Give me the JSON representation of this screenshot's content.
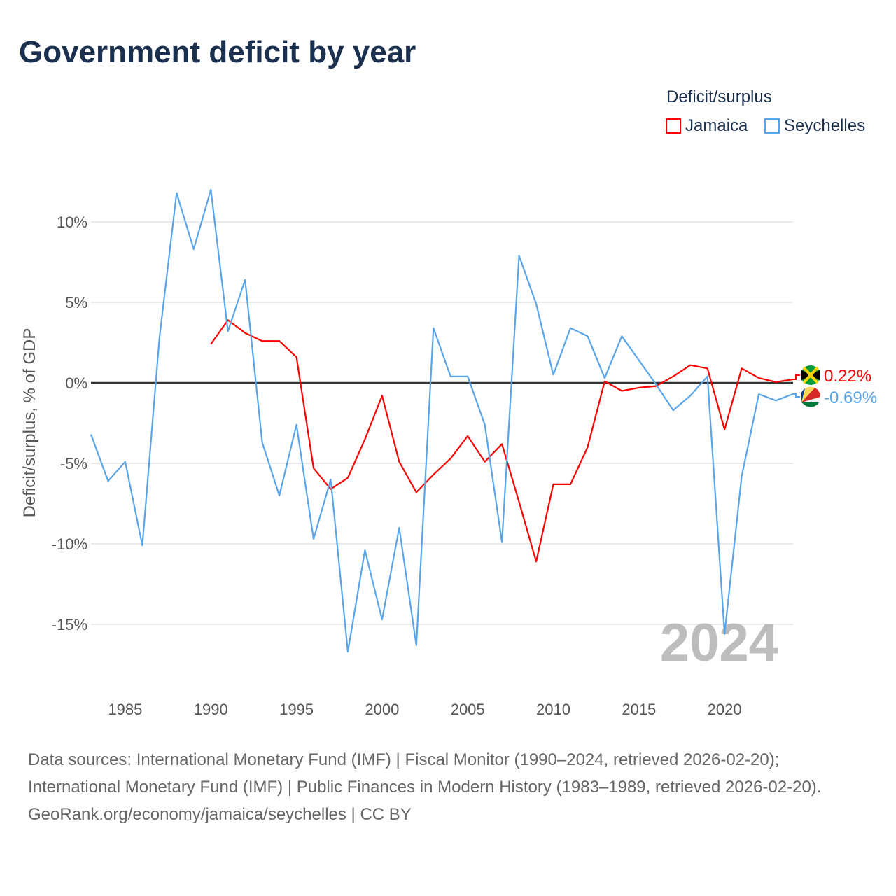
{
  "title": "Government deficit by year",
  "legend": {
    "title": "Deficit/surplus",
    "items": [
      {
        "label": "Jamaica",
        "color": "#ff0000"
      },
      {
        "label": "Seychelles",
        "color": "#5aa5ea"
      }
    ]
  },
  "footer": {
    "sources": "Data sources: International Monetary Fund (IMF) | Fiscal Monitor (1990–2024, retrieved 2026-02-20); International Monetary Fund (IMF) | Public Finances in Modern History (1983–1989, retrieved 2026-02-20).",
    "credit": "GeoRank.org/economy/jamaica/seychelles | CC BY"
  },
  "chart_data": {
    "type": "line",
    "title": "Government deficit by year",
    "ylabel": "Deficit/surplus, % of GDP",
    "xlabel": "",
    "year_watermark": "2024",
    "xlim": [
      1983,
      2024
    ],
    "ylim": [
      -18.5,
      12.5
    ],
    "xticks": [
      1985,
      1990,
      1995,
      2000,
      2005,
      2010,
      2015,
      2020
    ],
    "yticks": [
      {
        "v": 10,
        "label": "10%"
      },
      {
        "v": 5,
        "label": "5%"
      },
      {
        "v": 0,
        "label": "0%"
      },
      {
        "v": -5,
        "label": "-5%"
      },
      {
        "v": -10,
        "label": "-10%"
      },
      {
        "v": -15,
        "label": "-15%"
      }
    ],
    "series": [
      {
        "name": "Jamaica",
        "color": "#ff0000",
        "end_label": "0.22%",
        "start": 1990,
        "values": [
          2.4,
          3.9,
          3.1,
          2.6,
          2.6,
          1.6,
          -5.3,
          -6.6,
          -5.9,
          -3.5,
          -0.8,
          -4.9,
          -6.8,
          -5.7,
          -4.7,
          -3.3,
          -4.9,
          -3.8,
          -7.4,
          -11.1,
          -6.3,
          -6.3,
          -4.0,
          0.1,
          -0.5,
          -0.3,
          -0.2,
          0.4,
          1.1,
          0.9,
          -2.9,
          0.9,
          0.3,
          0.05,
          0.22
        ]
      },
      {
        "name": "Seychelles",
        "color": "#5aa5ea",
        "end_label": "-0.69%",
        "start": 1983,
        "values": [
          -3.2,
          -6.1,
          -4.9,
          -10.1,
          2.8,
          11.8,
          8.3,
          12.0,
          3.2,
          6.4,
          -3.7,
          -7.0,
          -2.6,
          -9.7,
          -6.0,
          -16.7,
          -10.4,
          -14.7,
          -9.0,
          -16.3,
          3.4,
          0.4,
          0.4,
          -2.6,
          -9.9,
          7.9,
          4.9,
          0.5,
          3.4,
          2.9,
          0.3,
          2.9,
          1.4,
          -0.1,
          -1.7,
          -0.8,
          0.4,
          -15.6,
          -5.8,
          -0.7,
          -1.1,
          -0.69
        ]
      }
    ]
  }
}
